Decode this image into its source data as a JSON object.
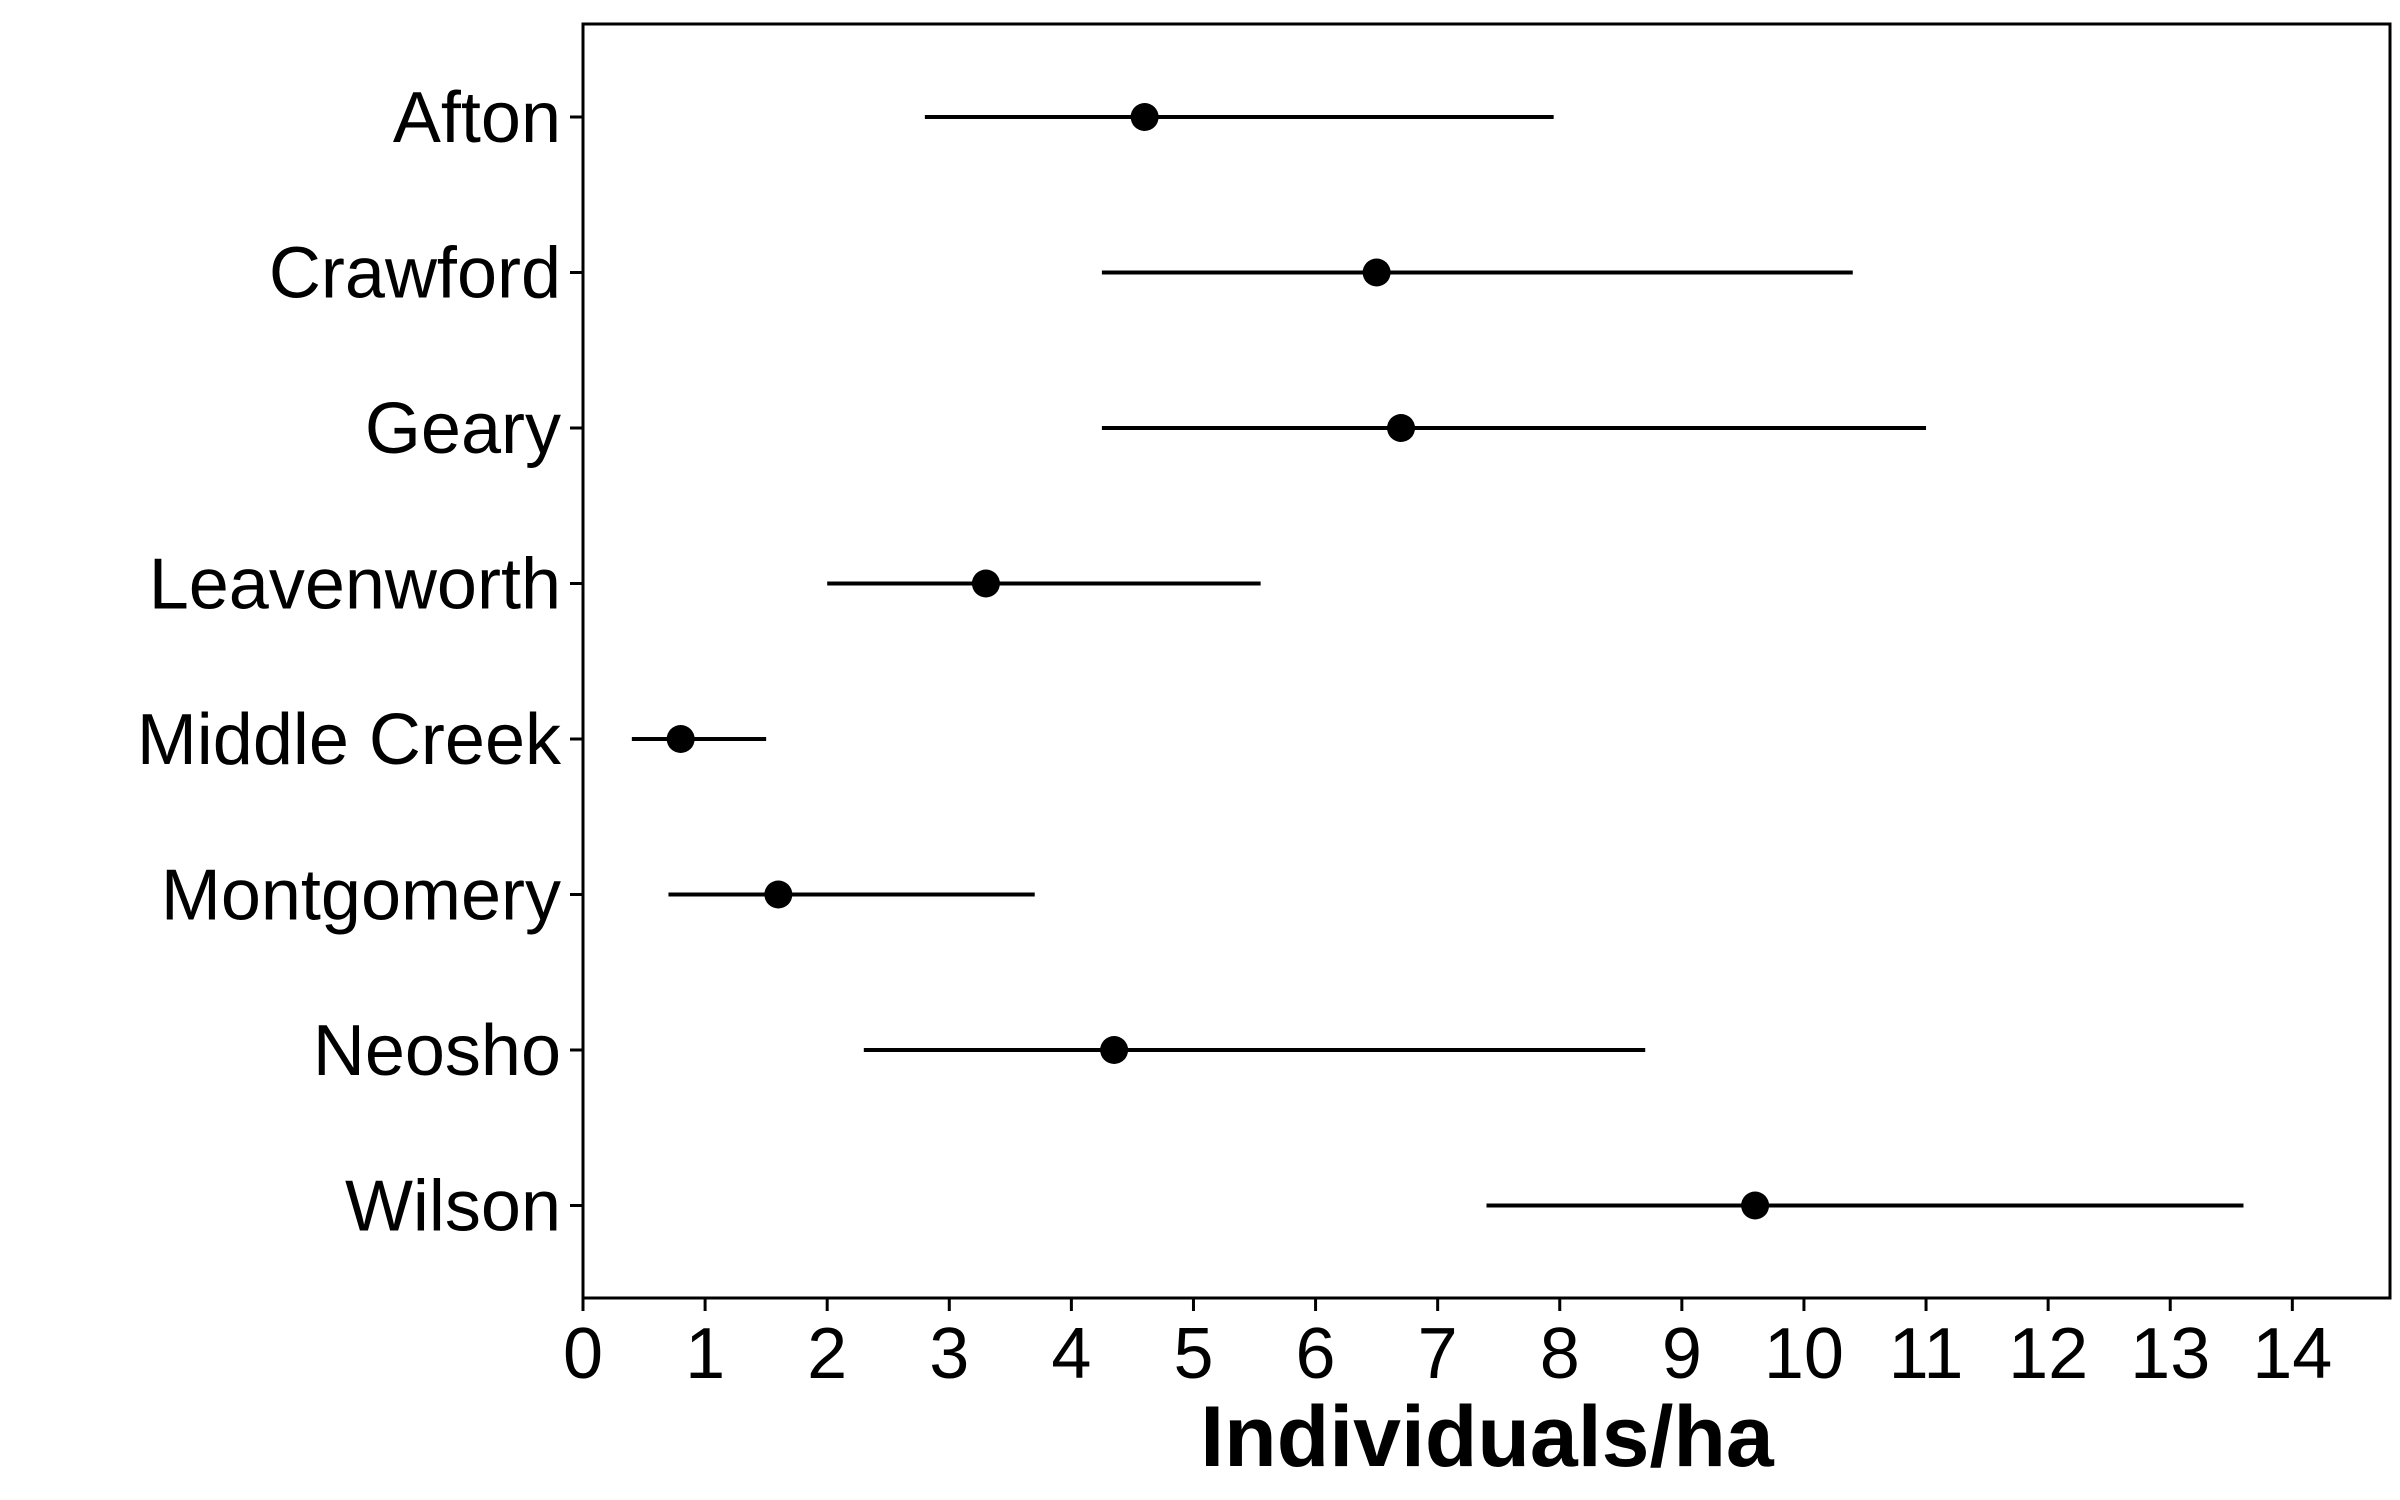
{
  "chart_data": {
    "type": "dot-errorbar",
    "title": "",
    "xlabel": "Individuals/ha",
    "ylabel": "",
    "xlim": [
      0,
      14.8
    ],
    "xticks": [
      0,
      1,
      2,
      3,
      4,
      5,
      6,
      7,
      8,
      9,
      10,
      11,
      12,
      13,
      14
    ],
    "grid": false,
    "legend": "none",
    "categories": [
      "Afton",
      "Crawford",
      "Geary",
      "Leavenworth",
      "Middle Creek",
      "Montgomery",
      "Neosho",
      "Wilson"
    ],
    "estimates": [
      4.6,
      6.5,
      6.7,
      3.3,
      0.8,
      1.6,
      4.35,
      9.6
    ],
    "lower": [
      2.8,
      4.25,
      4.25,
      2.0,
      0.4,
      0.7,
      2.3,
      7.4
    ],
    "upper": [
      7.95,
      10.4,
      11.0,
      5.55,
      1.5,
      3.7,
      8.7,
      13.6
    ],
    "point_color": "#000000",
    "line_color": "#000000"
  }
}
